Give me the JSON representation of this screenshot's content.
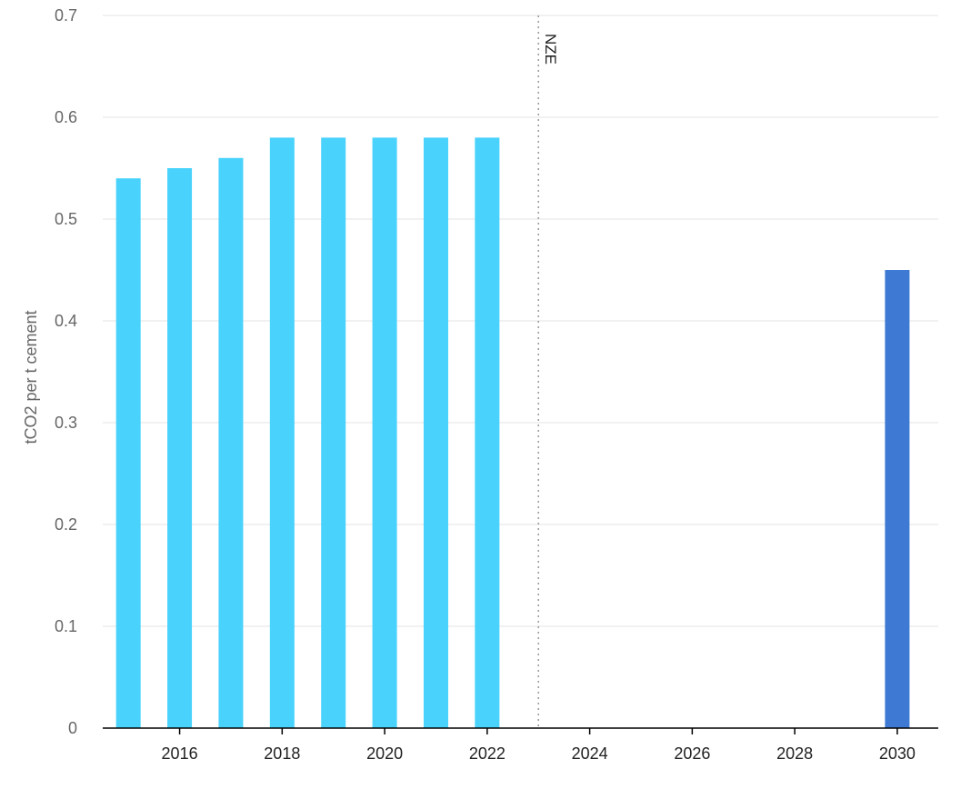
{
  "chart_data": {
    "type": "bar",
    "title": "",
    "xlabel": "",
    "ylabel": "tCO2 per t cement",
    "ylim": [
      0,
      0.7
    ],
    "xlim": [
      2014.5,
      2030.8
    ],
    "yticks": [
      "0",
      "0.1",
      "0.2",
      "0.3",
      "0.4",
      "0.5",
      "0.6",
      "0.7"
    ],
    "xticks": [
      "2016",
      "2018",
      "2020",
      "2022",
      "2024",
      "2026",
      "2028",
      "2030"
    ],
    "grid": true,
    "colors": {
      "historical": "#48D2FC",
      "scenario": "#3E7AD3"
    },
    "bars": [
      {
        "x": 2015,
        "value": 0.54,
        "group": "historical"
      },
      {
        "x": 2016,
        "value": 0.55,
        "group": "historical"
      },
      {
        "x": 2017,
        "value": 0.56,
        "group": "historical"
      },
      {
        "x": 2018,
        "value": 0.58,
        "group": "historical"
      },
      {
        "x": 2019,
        "value": 0.58,
        "group": "historical"
      },
      {
        "x": 2020,
        "value": 0.58,
        "group": "historical"
      },
      {
        "x": 2021,
        "value": 0.58,
        "group": "historical"
      },
      {
        "x": 2022,
        "value": 0.58,
        "group": "historical"
      },
      {
        "x": 2030,
        "value": 0.45,
        "group": "scenario"
      }
    ],
    "annotations": [
      {
        "x": 2023,
        "label": "NZE",
        "style": "dotted-vertical-line"
      }
    ]
  }
}
